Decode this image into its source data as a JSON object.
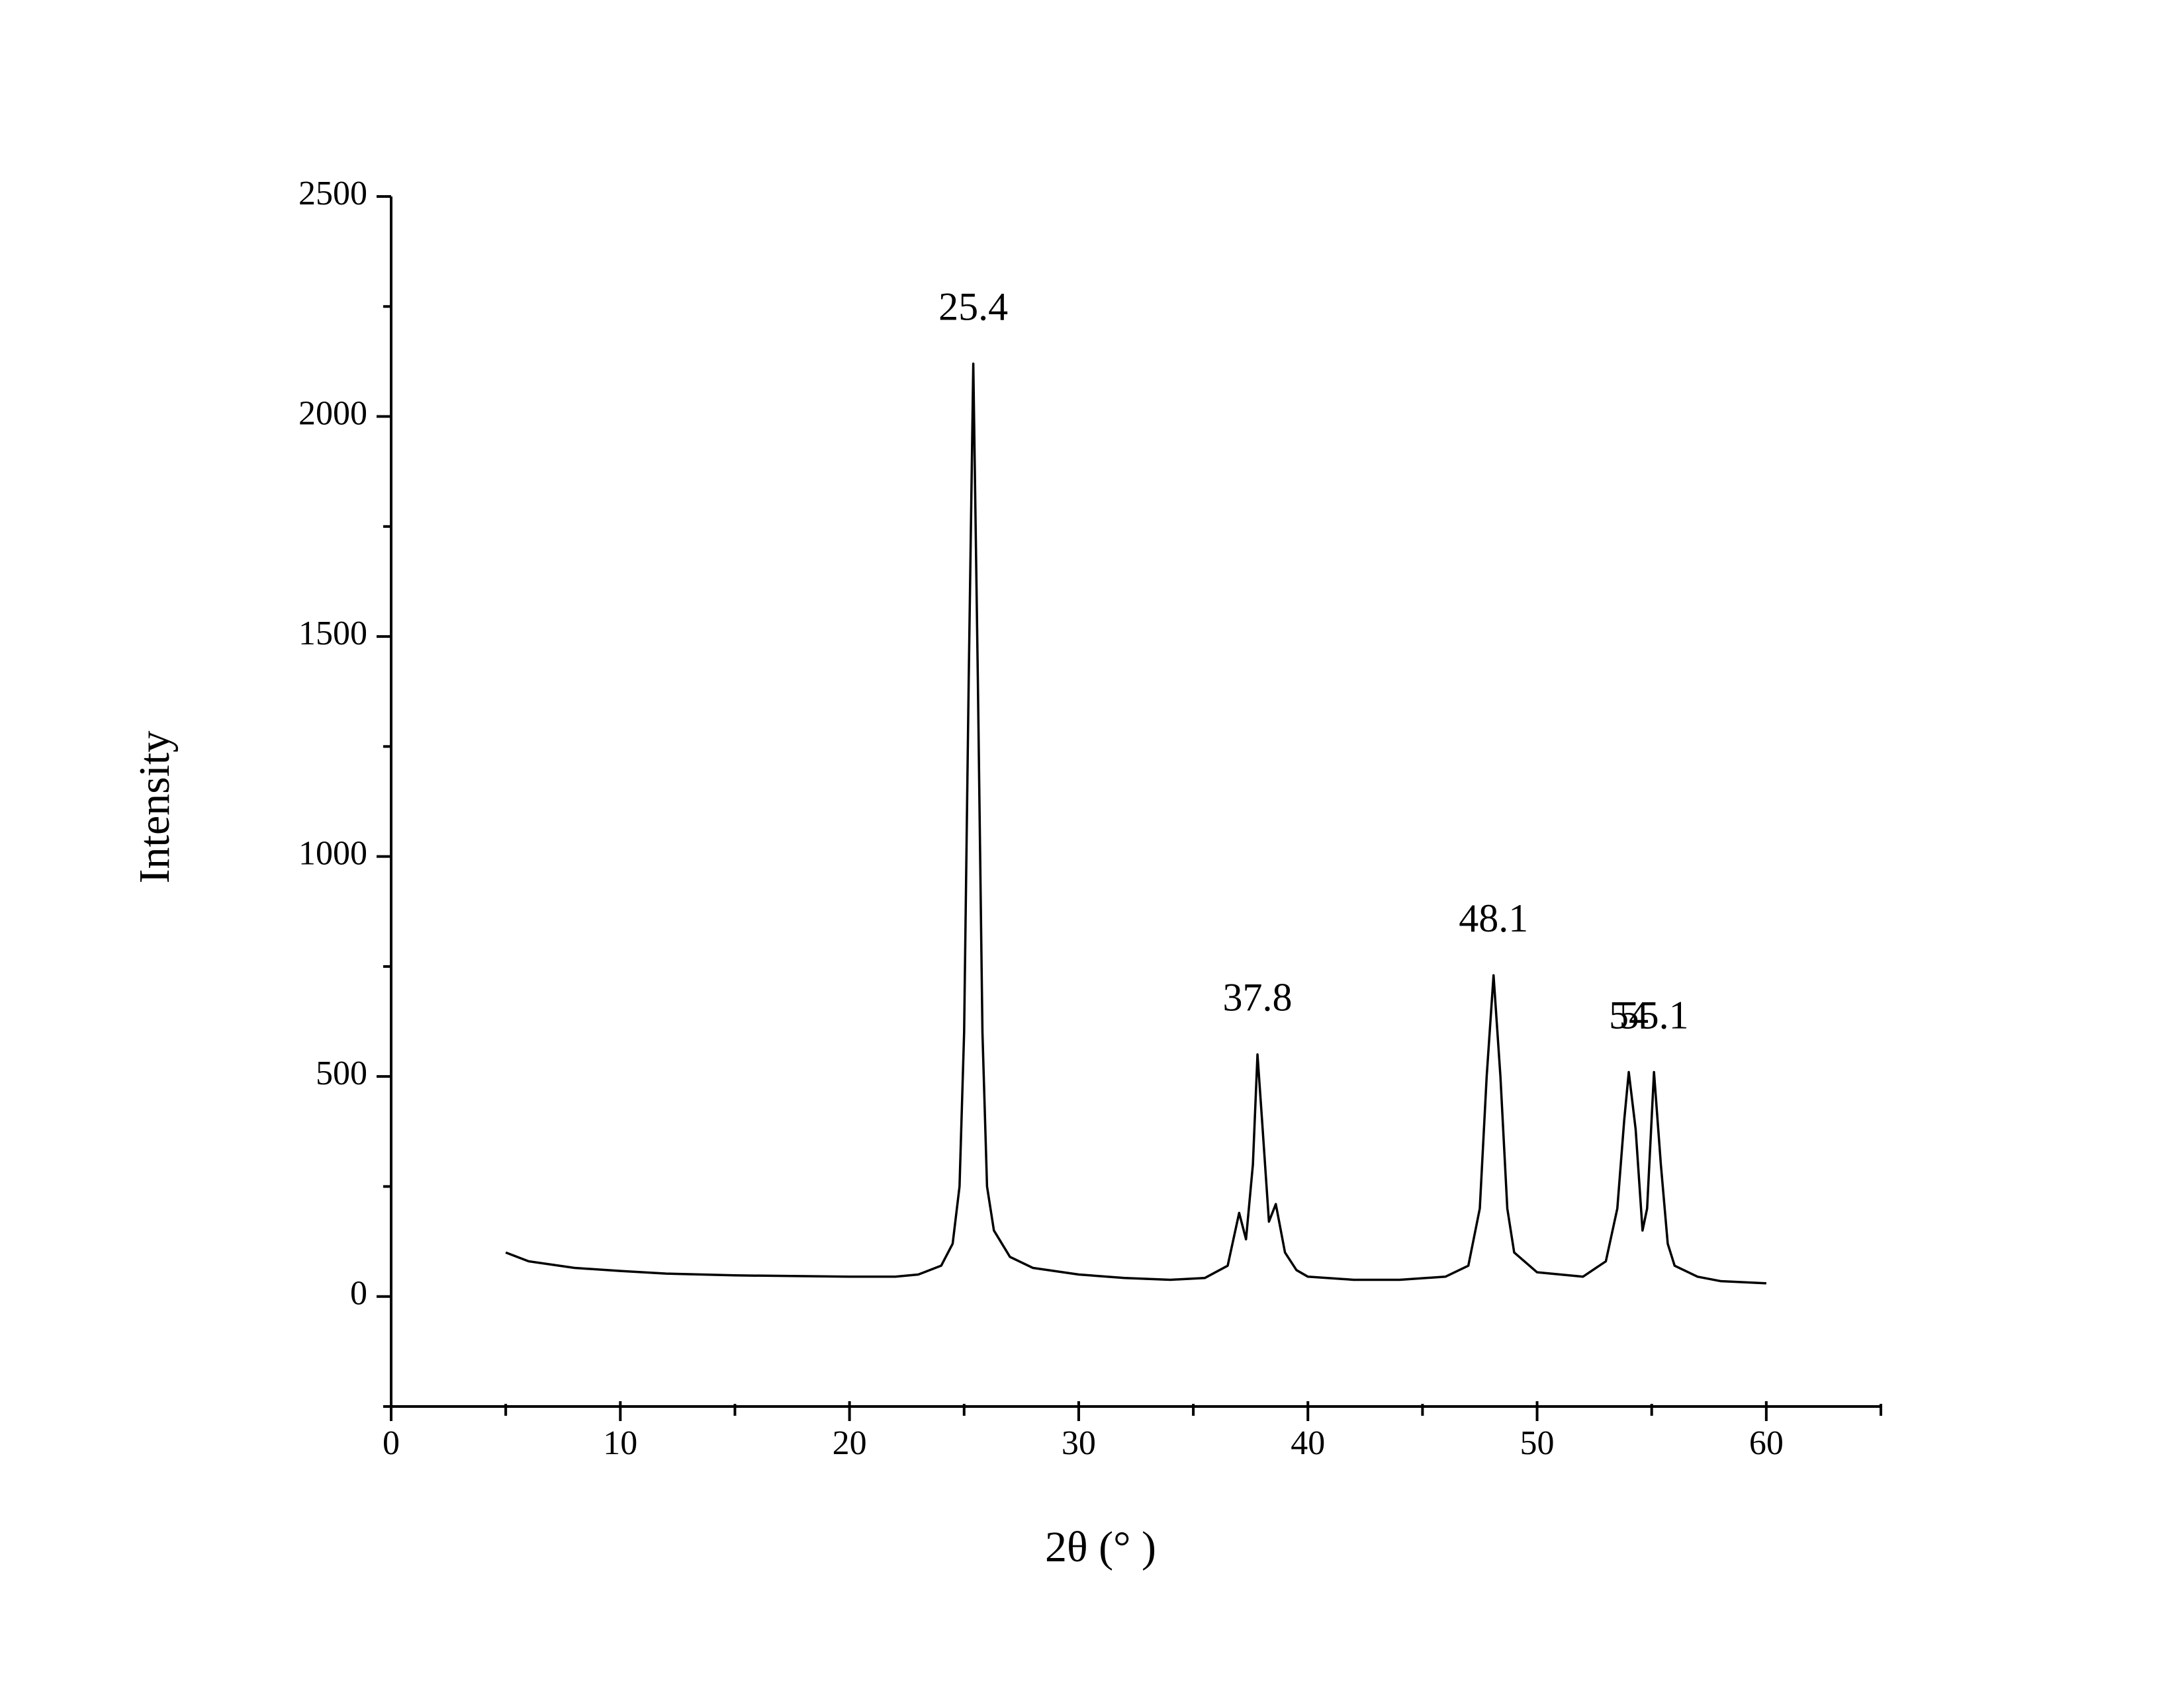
{
  "chart_data": {
    "type": "line",
    "xlabel": "2θ (° )",
    "ylabel": "Intensity",
    "x": [
      5,
      6,
      8,
      10,
      12,
      15,
      20,
      22,
      23,
      24,
      24.5,
      24.8,
      25.0,
      25.2,
      25.4,
      25.6,
      25.8,
      26,
      26.3,
      27,
      28,
      30,
      32,
      34,
      35.5,
      36.5,
      37,
      37.3,
      37.6,
      37.8,
      38.0,
      38.3,
      38.6,
      39,
      39.5,
      40,
      42,
      44,
      46,
      47,
      47.5,
      47.8,
      48.1,
      48.4,
      48.7,
      49,
      50,
      52,
      53,
      53.5,
      53.8,
      54,
      54.3,
      54.6,
      54.8,
      55.1,
      55.4,
      55.7,
      56,
      57,
      58,
      60
    ],
    "series": [
      {
        "color": "#000000",
        "values": [
          100,
          80,
          65,
          58,
          52,
          48,
          45,
          45,
          50,
          70,
          120,
          250,
          600,
          1400,
          2120,
          1400,
          600,
          250,
          150,
          90,
          65,
          50,
          42,
          38,
          42,
          70,
          190,
          130,
          300,
          550,
          400,
          170,
          210,
          100,
          60,
          45,
          38,
          38,
          45,
          70,
          200,
          500,
          730,
          500,
          200,
          100,
          55,
          45,
          80,
          200,
          400,
          510,
          380,
          150,
          200,
          510,
          300,
          120,
          70,
          45,
          35,
          30
        ]
      }
    ],
    "annotations": [
      {
        "x": 25.4,
        "label": "25.4"
      },
      {
        "x": 37.8,
        "label": "37.8"
      },
      {
        "x": 48.1,
        "label": "48.1"
      },
      {
        "x": 54,
        "label": "54"
      },
      {
        "x": 55.1,
        "label": "55.1"
      }
    ],
    "xlim": [
      0,
      65
    ],
    "xticks": [
      0,
      10,
      20,
      30,
      40,
      50,
      60
    ],
    "xminorticks": [
      5,
      15,
      25,
      35,
      45,
      55,
      65
    ],
    "ylim": [
      -250,
      2500
    ],
    "yticks": [
      0,
      500,
      1000,
      1500,
      2000,
      2500
    ],
    "yminorticks": [
      -250,
      250,
      750,
      1250,
      1750,
      2250
    ],
    "grid": false
  }
}
